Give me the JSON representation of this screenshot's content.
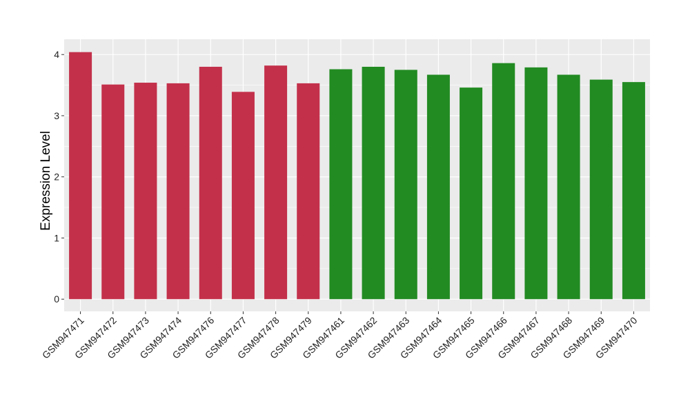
{
  "chart_data": {
    "type": "bar",
    "title": "",
    "xlabel": "",
    "ylabel": "Expression Level",
    "ylim": [
      -0.2,
      4.25
    ],
    "yticks": [
      0,
      1,
      2,
      3,
      4
    ],
    "grid": true,
    "legend": "none",
    "panel_background": "#EBEBEB",
    "grid_color": "#FFFFFF",
    "categories": [
      "GSM947471",
      "GSM947472",
      "GSM947473",
      "GSM947474",
      "GSM947476",
      "GSM947477",
      "GSM947478",
      "GSM947479",
      "GSM947461",
      "GSM947462",
      "GSM947463",
      "GSM947464",
      "GSM947465",
      "GSM947466",
      "GSM947467",
      "GSM947468",
      "GSM947469",
      "GSM947470"
    ],
    "values": [
      4.04,
      3.51,
      3.54,
      3.53,
      3.8,
      3.39,
      3.82,
      3.53,
      3.76,
      3.8,
      3.75,
      3.67,
      3.46,
      3.86,
      3.79,
      3.67,
      3.59,
      3.55
    ],
    "group_colors": [
      "#C3304A",
      "#C3304A",
      "#C3304A",
      "#C3304A",
      "#C3304A",
      "#C3304A",
      "#C3304A",
      "#C3304A",
      "#228B22",
      "#228B22",
      "#228B22",
      "#228B22",
      "#228B22",
      "#228B22",
      "#228B22",
      "#228B22",
      "#228B22",
      "#228B22"
    ]
  }
}
